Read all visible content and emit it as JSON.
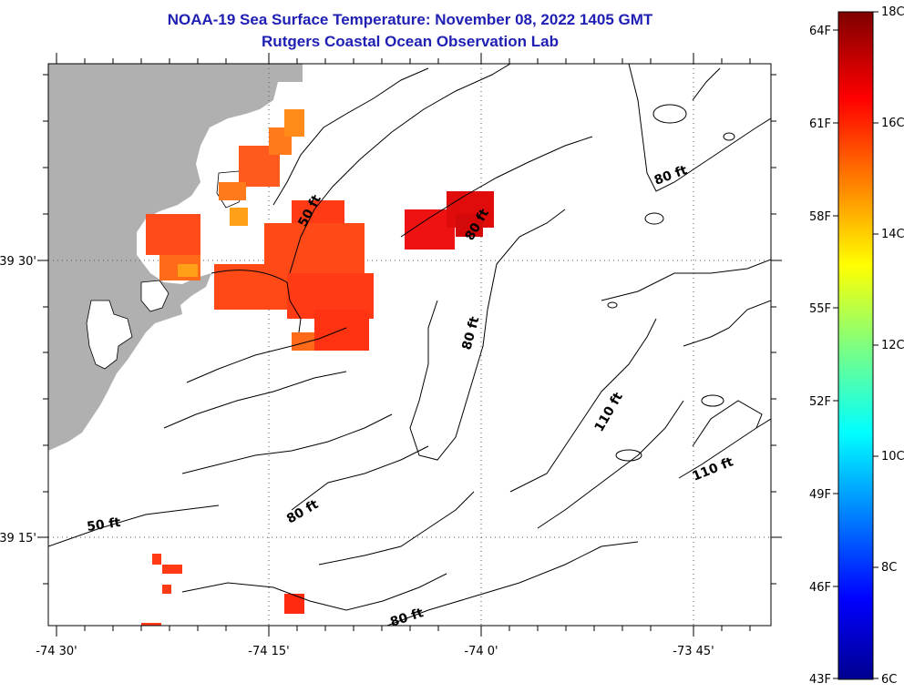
{
  "header": {
    "title": "NOAA-19 Sea Surface Temperature:  November 08, 2022 1405 GMT",
    "subtitle": "Rutgers Coastal Ocean Observation Lab"
  },
  "map": {
    "x_ticks": [
      "-74 30'",
      "-74 15'",
      "-74 0'",
      "-73 45'"
    ],
    "y_ticks": [
      "39 30'",
      "39 15'"
    ],
    "contour_labels": [
      "50 ft",
      "80 ft",
      "80 ft",
      "80 ft",
      "80 ft",
      "80 ft",
      "110 ft",
      "110 ft",
      "50 ft"
    ],
    "land_color": "#b0b0b0",
    "sst_cells_approx_celsius": 16.5
  },
  "colorbar": {
    "fahrenheit_labels": [
      "64F",
      "61F",
      "58F",
      "55F",
      "52F",
      "49F",
      "46F",
      "43F"
    ],
    "celsius_labels": [
      "18C",
      "16C",
      "14C",
      "12C",
      "10C",
      "8C",
      "6C"
    ],
    "range_c": [
      6,
      18
    ],
    "range_f": [
      43,
      64
    ]
  }
}
